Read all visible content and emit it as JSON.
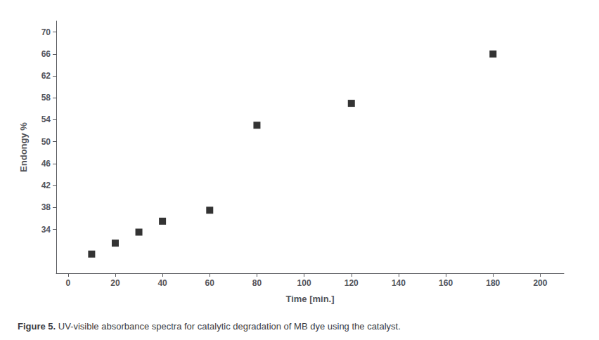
{
  "chart_data": {
    "type": "scatter",
    "title": "Figure 5.",
    "subtitle": " UV-visible absorbance spectra for catalytic degradation of MB dye using the catalyst.",
    "x_label": "Time [min.]",
    "y_label": "Endongy %",
    "x": [
      10,
      20,
      30,
      40,
      60,
      80,
      120,
      180
    ],
    "values": [
      29.5,
      31.5,
      33.5,
      35.5,
      37.5,
      53,
      57,
      66
    ],
    "color": "#000000",
    "marker": "square",
    "xlim": [
      -5,
      210
    ],
    "ylim": [
      26,
      72
    ],
    "xticks": [
      0,
      20,
      40,
      60,
      80,
      100,
      120,
      140,
      160,
      180,
      200
    ],
    "yticks": [
      34,
      38,
      42,
      46,
      50,
      54,
      58,
      62,
      66,
      70
    ],
    "grid": false
  }
}
